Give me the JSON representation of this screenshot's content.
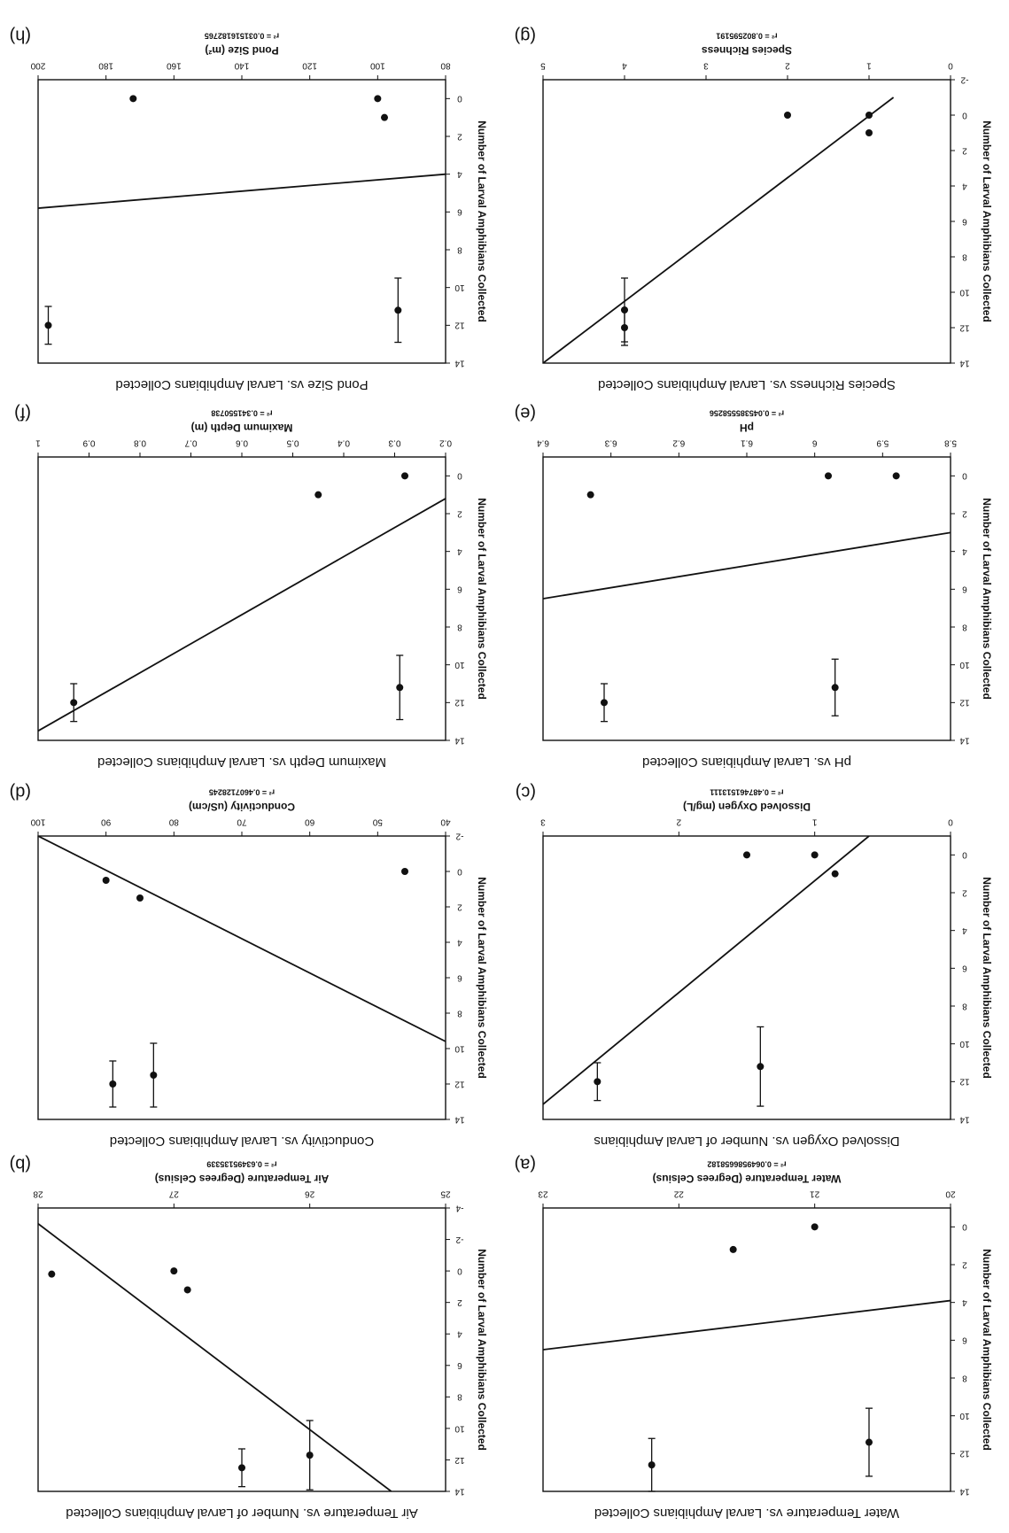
{
  "chart_data": [
    {
      "id": "a",
      "type": "scatter",
      "title": "Water Temperature vs. Larval Amphibians Collected",
      "xlabel": "Water Temperature (Degrees Celsius)",
      "ylabel": "Number of Larval Amphibians Collected",
      "r2": "r² = 0.0649586658182",
      "letter": "(a)",
      "xlim": [
        20,
        23
      ],
      "ylim": [
        -1,
        14
      ],
      "xticks": [
        20,
        21,
        22,
        23
      ],
      "yticks": [
        0,
        2,
        4,
        6,
        8,
        10,
        12,
        14
      ],
      "points": [
        {
          "x": 21.0,
          "y": 0.0,
          "err": 0
        },
        {
          "x": 21.6,
          "y": 1.2,
          "err": 0
        },
        {
          "x": 22.2,
          "y": 12.6,
          "err": 1.4
        },
        {
          "x": 20.6,
          "y": 11.4,
          "err": 1.8
        }
      ],
      "fit": [
        [
          20,
          3.9
        ],
        [
          23,
          6.5
        ]
      ]
    },
    {
      "id": "b",
      "type": "scatter",
      "title": "Air Temperature vs. Number of Larval Amphibians Collected",
      "xlabel": "Air Temperature (Degrees Celsius)",
      "ylabel": "Number of Larval Amphibians Collected",
      "r2": "r² = 0.63495135339",
      "letter": "(b)",
      "xlim": [
        25,
        28
      ],
      "ylim": [
        -4,
        14
      ],
      "xticks": [
        25,
        26,
        27,
        28
      ],
      "yticks": [
        -4,
        -2,
        0,
        2,
        4,
        6,
        8,
        10,
        12,
        14
      ],
      "points": [
        {
          "x": 27.9,
          "y": 0.2,
          "err": 0
        },
        {
          "x": 27.0,
          "y": 0.0,
          "err": 0
        },
        {
          "x": 26.9,
          "y": 1.2,
          "err": 0
        },
        {
          "x": 26.5,
          "y": 12.5,
          "err": 1.2
        },
        {
          "x": 26.0,
          "y": 11.7,
          "err": 2.2
        }
      ],
      "fit": [
        [
          28,
          -3.0
        ],
        [
          25.4,
          14.0
        ]
      ]
    },
    {
      "id": "c",
      "type": "scatter",
      "title": "Dissolved Oxygen vs. Number of Larval Amphibians",
      "xlabel": "Dissolved Oxygen (mg/L)",
      "ylabel": "Number of Larval Amphibians Collected",
      "r2": "r² = 0.487461513111",
      "letter": "(c)",
      "xlim": [
        0,
        3
      ],
      "ylim": [
        -1,
        14
      ],
      "xticks": [
        0,
        1,
        2,
        3
      ],
      "yticks": [
        0,
        2,
        4,
        6,
        8,
        10,
        12,
        14
      ],
      "points": [
        {
          "x": 1.5,
          "y": 0.0,
          "err": 0
        },
        {
          "x": 1.0,
          "y": 0.0,
          "err": 0
        },
        {
          "x": 0.85,
          "y": 1.0,
          "err": 0
        },
        {
          "x": 2.6,
          "y": 12.0,
          "err": 1.0
        },
        {
          "x": 1.4,
          "y": 11.2,
          "err": 2.1
        }
      ],
      "fit": [
        [
          0.6,
          -1.0
        ],
        [
          3.0,
          13.2
        ]
      ]
    },
    {
      "id": "d",
      "type": "scatter",
      "title": "Conductivity vs. Larval Amphibians Collected",
      "xlabel": "Conductivity (uS/cm)",
      "ylabel": "Number of Larval Amphibians Collected",
      "r2": "r² = 0.4607128245",
      "letter": "(d)",
      "xlim": [
        40,
        100
      ],
      "ylim": [
        -2,
        14
      ],
      "xticks": [
        40,
        50,
        60,
        70,
        80,
        90,
        100
      ],
      "yticks": [
        -2,
        0,
        2,
        4,
        6,
        8,
        10,
        12,
        14
      ],
      "points": [
        {
          "x": 46,
          "y": 0.0,
          "err": 0
        },
        {
          "x": 90,
          "y": 0.5,
          "err": 0
        },
        {
          "x": 85,
          "y": 1.5,
          "err": 0
        },
        {
          "x": 89,
          "y": 12.0,
          "err": 1.3
        },
        {
          "x": 83,
          "y": 11.5,
          "err": 1.8
        }
      ],
      "fit": [
        [
          100,
          -2.0
        ],
        [
          40,
          9.6
        ]
      ]
    },
    {
      "id": "e",
      "type": "scatter",
      "title": "pH vs. Larval Amphibians Collected",
      "xlabel": "pH",
      "ylabel": "Number of Larval Amphibians Collected",
      "r2": "r² = 0.045385558256",
      "letter": "(e)",
      "xlim": [
        5.8,
        6.4
      ],
      "ylim": [
        -1,
        14
      ],
      "xticks": [
        5.8,
        5.9,
        6.0,
        6.1,
        6.2,
        6.3,
        6.4
      ],
      "yticks": [
        0,
        2,
        4,
        6,
        8,
        10,
        12,
        14
      ],
      "points": [
        {
          "x": 5.88,
          "y": 0.0,
          "err": 0
        },
        {
          "x": 5.98,
          "y": 0.0,
          "err": 0
        },
        {
          "x": 6.33,
          "y": 1.0,
          "err": 0
        },
        {
          "x": 6.31,
          "y": 12.0,
          "err": 1.0
        },
        {
          "x": 5.97,
          "y": 11.2,
          "err": 1.5
        }
      ],
      "fit": [
        [
          5.8,
          3.0
        ],
        [
          6.4,
          6.5
        ]
      ]
    },
    {
      "id": "f",
      "type": "scatter",
      "title": "Maximum Depth vs. Larval Amphibians Collected",
      "xlabel": "Maximum Depth (m)",
      "ylabel": "Number of Larval Amphibians Collected",
      "r2": "r² = 0.341550738",
      "letter": "(f)",
      "xlim": [
        0.2,
        1.0
      ],
      "ylim": [
        -1,
        14
      ],
      "xticks": [
        0.2,
        0.3,
        0.4,
        0.5,
        0.6,
        0.7,
        0.8,
        0.9,
        1.0
      ],
      "yticks": [
        0,
        2,
        4,
        6,
        8,
        10,
        12,
        14
      ],
      "points": [
        {
          "x": 0.28,
          "y": 0.0,
          "err": 0
        },
        {
          "x": 0.45,
          "y": 1.0,
          "err": 0
        },
        {
          "x": 0.93,
          "y": 12.0,
          "err": 1.0
        },
        {
          "x": 0.29,
          "y": 11.2,
          "err": 1.7
        }
      ],
      "fit": [
        [
          0.2,
          1.2
        ],
        [
          1.0,
          13.5
        ]
      ]
    },
    {
      "id": "g",
      "type": "scatter",
      "title": "Species Richness vs. Larval Amphibians Collected",
      "xlabel": "Species Richness",
      "ylabel": "Number of Larval Amphibians Collected",
      "r2": "r² = 0.802595191",
      "letter": "(g)",
      "xlim": [
        0,
        5
      ],
      "ylim": [
        -2,
        14
      ],
      "xticks": [
        0,
        1,
        2,
        3,
        4,
        5
      ],
      "yticks": [
        -2,
        0,
        2,
        4,
        6,
        8,
        10,
        12,
        14
      ],
      "points": [
        {
          "x": 2.0,
          "y": 0.0,
          "err": 0
        },
        {
          "x": 1.0,
          "y": 0.0,
          "err": 0
        },
        {
          "x": 1.0,
          "y": 1.0,
          "err": 0
        },
        {
          "x": 4.0,
          "y": 12.0,
          "err": 1.0
        },
        {
          "x": 4.0,
          "y": 11.0,
          "err": 1.8
        }
      ],
      "fit": [
        [
          0.7,
          -1.0
        ],
        [
          5.0,
          14.0
        ]
      ]
    },
    {
      "id": "h",
      "type": "scatter",
      "title": "Pond Size vs. Larval Amphibians Collected",
      "xlabel": "Pond Size (m²)",
      "ylabel": "Number of Larval Amphibians Collected",
      "r2": "r² = 0.031516182765",
      "letter": "(h)",
      "xlim": [
        80,
        200
      ],
      "ylim": [
        -1,
        14
      ],
      "xticks": [
        80,
        100,
        120,
        140,
        160,
        180,
        200
      ],
      "yticks": [
        0,
        2,
        4,
        6,
        8,
        10,
        12,
        14
      ],
      "points": [
        {
          "x": 172,
          "y": 0.0,
          "err": 0
        },
        {
          "x": 100,
          "y": 0.0,
          "err": 0
        },
        {
          "x": 98,
          "y": 1.0,
          "err": 0
        },
        {
          "x": 197,
          "y": 12.0,
          "err": 1.0
        },
        {
          "x": 94,
          "y": 11.2,
          "err": 1.7
        }
      ],
      "fit": [
        [
          80,
          4.0
        ],
        [
          200,
          5.8
        ]
      ]
    }
  ]
}
